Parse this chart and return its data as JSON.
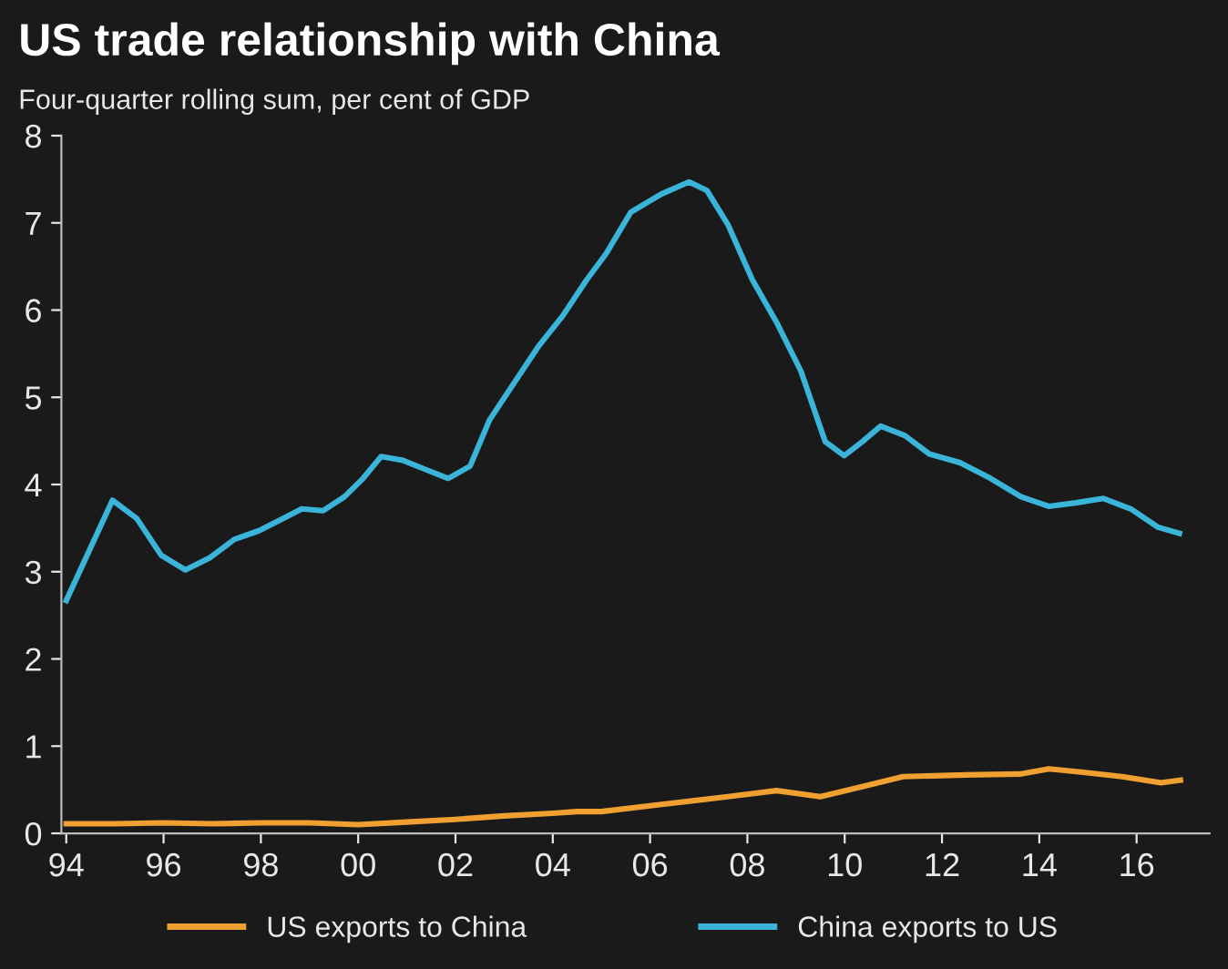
{
  "chart_data": {
    "type": "line",
    "title": "US trade relationship with China",
    "subtitle": "Four-quarter rolling sum, per cent of GDP",
    "series": [
      {
        "name": "US exports to China",
        "color": "#f0a030",
        "x": [
          1994.0,
          1995.0,
          1996.0,
          1997.0,
          1998.0,
          1999.0,
          2000.0,
          2001.0,
          2002.0,
          2003.0,
          2004.0,
          2004.5,
          2005.0,
          2006.2,
          2007.6,
          2008.6,
          2009.5,
          2010.4,
          2011.2,
          2012.5,
          2013.6,
          2014.2,
          2014.9,
          2015.7,
          2016.5,
          2016.9
        ],
        "values": [
          0.11,
          0.11,
          0.12,
          0.11,
          0.12,
          0.12,
          0.1,
          0.13,
          0.16,
          0.2,
          0.23,
          0.25,
          0.25,
          0.33,
          0.42,
          0.49,
          0.42,
          0.54,
          0.65,
          0.67,
          0.68,
          0.74,
          0.7,
          0.65,
          0.58,
          0.61
        ]
      },
      {
        "name": "China exports to US",
        "color": "#3ab4d8",
        "x": [
          1994.0,
          1994.95,
          1995.45,
          1995.95,
          1996.45,
          1996.95,
          1997.45,
          1997.96,
          1998.46,
          1998.84,
          1999.28,
          1999.72,
          2000.1,
          2000.47,
          2000.9,
          2001.35,
          2001.85,
          2002.3,
          2002.7,
          2003.2,
          2003.7,
          2004.2,
          2004.7,
          2005.1,
          2005.6,
          2006.23,
          2006.8,
          2007.17,
          2007.6,
          2008.1,
          2008.6,
          2009.1,
          2009.6,
          2009.99,
          2010.36,
          2010.74,
          2011.24,
          2011.74,
          2012.37,
          2013.0,
          2013.62,
          2014.19,
          2014.75,
          2015.32,
          2015.88,
          2016.44,
          2016.88
        ],
        "values": [
          2.67,
          3.82,
          3.61,
          3.19,
          3.02,
          3.16,
          3.37,
          3.47,
          3.61,
          3.72,
          3.7,
          3.86,
          4.07,
          4.32,
          4.28,
          4.18,
          4.07,
          4.21,
          4.74,
          5.16,
          5.58,
          5.93,
          6.35,
          6.65,
          7.12,
          7.33,
          7.47,
          7.37,
          6.98,
          6.35,
          5.86,
          5.3,
          4.49,
          4.33,
          4.49,
          4.67,
          4.56,
          4.35,
          4.25,
          4.07,
          3.86,
          3.75,
          3.79,
          3.84,
          3.72,
          3.51,
          3.44
        ]
      }
    ],
    "xlim": [
      1993.9,
      2017.5
    ],
    "xticks": [
      {
        "value": 1994,
        "label": "94"
      },
      {
        "value": 1996,
        "label": "96"
      },
      {
        "value": 1998,
        "label": "98"
      },
      {
        "value": 2000,
        "label": "00"
      },
      {
        "value": 2002,
        "label": "02"
      },
      {
        "value": 2004,
        "label": "04"
      },
      {
        "value": 2006,
        "label": "06"
      },
      {
        "value": 2008,
        "label": "08"
      },
      {
        "value": 2010,
        "label": "10"
      },
      {
        "value": 2012,
        "label": "12"
      },
      {
        "value": 2014,
        "label": "14"
      },
      {
        "value": 2016,
        "label": "16"
      }
    ],
    "ylim": [
      0,
      8
    ],
    "yticks": [
      0,
      1,
      2,
      3,
      4,
      5,
      6,
      7,
      8
    ],
    "legend": "bottom",
    "grid": false,
    "line_style": "solid",
    "marker": "none"
  }
}
